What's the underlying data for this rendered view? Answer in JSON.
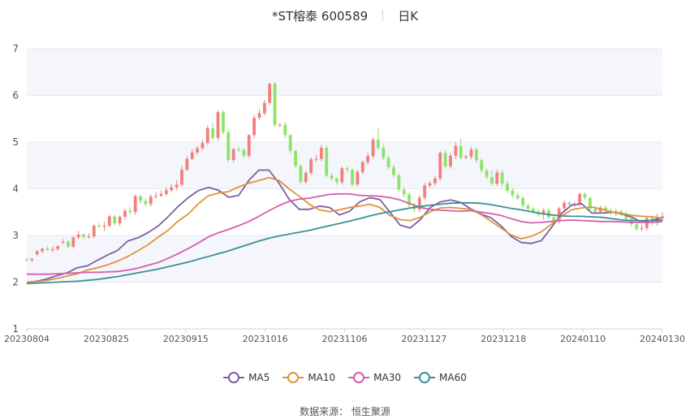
{
  "title": {
    "stock": "*ST榕泰 600589",
    "period": "日K"
  },
  "source": {
    "label": "数据来源：",
    "value": "恒生聚源"
  },
  "chart_data": {
    "type": "candlestick",
    "ylim": [
      1,
      7
    ],
    "yticks": [
      1,
      2,
      3,
      4,
      5,
      6,
      7
    ],
    "x_tick_labels": [
      "20230804",
      "20230825",
      "20230915",
      "20231016",
      "20231106",
      "20231127",
      "20231218",
      "20240110",
      "20240130"
    ],
    "colors": {
      "up": "#f08080",
      "down": "#8ee36a",
      "grid": "#e6e9f0",
      "band": "#f4f6fb"
    },
    "legend": [
      {
        "name": "MA5",
        "color": "#7b5ea7"
      },
      {
        "name": "MA10",
        "color": "#e0923a"
      },
      {
        "name": "MA30",
        "color": "#d35eb0"
      },
      {
        "name": "MA60",
        "color": "#3d8f95"
      }
    ],
    "candles": {
      "open": [
        2.48,
        2.47,
        2.6,
        2.66,
        2.72,
        2.69,
        2.71,
        2.85,
        2.87,
        2.76,
        2.96,
        3.02,
        2.97,
        2.98,
        3.21,
        3.19,
        3.21,
        3.41,
        3.26,
        3.4,
        3.53,
        3.5,
        3.84,
        3.74,
        3.67,
        3.83,
        3.85,
        3.89,
        3.97,
        4.03,
        4.09,
        4.41,
        4.64,
        4.78,
        4.87,
        4.98,
        5.3,
        5.09,
        5.64,
        5.21,
        4.62,
        4.85,
        4.84,
        4.71,
        5.15,
        5.52,
        5.62,
        5.84,
        6.25,
        5.37,
        5.37,
        5.15,
        4.81,
        4.49,
        4.15,
        4.34,
        4.63,
        4.64,
        4.88,
        4.28,
        4.22,
        4.14,
        4.44,
        4.41,
        4.09,
        4.36,
        4.57,
        4.7,
        5.05,
        4.88,
        4.66,
        4.46,
        4.29,
        3.98,
        3.88,
        3.65,
        3.56,
        3.81,
        4.07,
        4.12,
        4.22,
        4.77,
        4.48,
        4.71,
        4.92,
        4.67,
        4.69,
        4.84,
        4.61,
        4.39,
        4.25,
        4.11,
        4.35,
        4.11,
        3.96,
        3.86,
        3.8,
        3.64,
        3.57,
        3.51,
        3.45,
        3.54,
        3.39,
        3.31,
        3.58,
        3.7,
        3.66,
        3.68,
        3.89,
        3.81,
        3.57,
        3.51,
        3.6,
        3.54,
        3.49,
        3.52,
        3.47,
        3.36,
        3.24,
        3.14,
        3.16,
        3.37,
        3.27,
        3.37
      ],
      "high": [
        2.53,
        2.52,
        2.69,
        2.73,
        2.79,
        2.77,
        2.8,
        2.92,
        2.9,
        2.99,
        3.1,
        3.04,
        3.05,
        3.24,
        3.27,
        3.29,
        3.44,
        3.44,
        3.43,
        3.58,
        3.61,
        3.88,
        3.88,
        3.8,
        3.88,
        3.93,
        3.96,
        4.03,
        4.11,
        4.18,
        4.49,
        4.7,
        4.85,
        4.92,
        5.05,
        5.36,
        5.41,
        5.68,
        5.68,
        5.27,
        4.88,
        4.9,
        4.87,
        5.17,
        5.58,
        5.7,
        5.91,
        6.27,
        6.29,
        5.41,
        5.44,
        5.17,
        4.84,
        4.52,
        4.39,
        4.68,
        4.73,
        4.94,
        4.93,
        4.35,
        4.24,
        4.48,
        4.48,
        4.44,
        4.41,
        4.61,
        4.77,
        5.1,
        5.3,
        4.95,
        4.72,
        4.51,
        4.33,
        4.04,
        3.93,
        3.71,
        3.86,
        4.13,
        4.17,
        4.28,
        4.8,
        4.84,
        4.77,
        5.0,
        5.08,
        4.73,
        4.9,
        4.88,
        4.66,
        4.44,
        4.39,
        4.41,
        4.4,
        4.17,
        4.02,
        3.93,
        3.85,
        3.69,
        3.62,
        3.57,
        3.59,
        3.6,
        3.44,
        3.62,
        3.75,
        3.74,
        3.73,
        3.92,
        3.92,
        3.84,
        3.62,
        3.64,
        3.65,
        3.6,
        3.57,
        3.56,
        3.53,
        3.41,
        3.28,
        3.23,
        3.42,
        3.42,
        3.47,
        3.5
      ],
      "low": [
        2.44,
        2.43,
        2.56,
        2.62,
        2.68,
        2.64,
        2.67,
        2.81,
        2.72,
        2.72,
        2.92,
        2.92,
        2.93,
        2.94,
        3.17,
        3.1,
        3.17,
        3.22,
        3.2,
        3.34,
        3.44,
        3.44,
        3.68,
        3.62,
        3.62,
        3.79,
        3.82,
        3.84,
        3.93,
        3.98,
        4.05,
        4.38,
        4.61,
        4.73,
        4.82,
        4.94,
        5.04,
        5.03,
        5.16,
        4.56,
        4.57,
        4.79,
        4.66,
        4.66,
        5.08,
        5.48,
        5.57,
        5.79,
        5.32,
        5.32,
        5.09,
        4.76,
        4.45,
        4.1,
        4.1,
        4.29,
        4.58,
        4.59,
        4.24,
        4.18,
        4.08,
        4.09,
        4.35,
        4.04,
        4.05,
        4.31,
        4.51,
        4.64,
        4.82,
        4.61,
        4.41,
        4.24,
        3.93,
        3.82,
        3.59,
        3.5,
        3.5,
        3.76,
        4.02,
        4.07,
        4.18,
        4.42,
        4.43,
        4.63,
        4.62,
        4.63,
        4.63,
        4.55,
        4.34,
        4.2,
        4.06,
        4.06,
        4.05,
        3.91,
        3.81,
        3.75,
        3.59,
        3.52,
        3.45,
        3.39,
        3.34,
        3.35,
        3.25,
        3.26,
        3.52,
        3.61,
        3.61,
        3.63,
        3.76,
        3.52,
        3.46,
        3.47,
        3.49,
        3.44,
        3.42,
        3.42,
        3.31,
        3.19,
        3.1,
        3.09,
        3.1,
        3.2,
        3.21,
        3.31
      ],
      "close": [
        2.47,
        2.5,
        2.66,
        2.72,
        2.69,
        2.71,
        2.77,
        2.87,
        2.76,
        2.96,
        3.02,
        2.97,
        2.98,
        3.21,
        3.19,
        3.21,
        3.41,
        3.26,
        3.4,
        3.53,
        3.5,
        3.84,
        3.74,
        3.67,
        3.83,
        3.85,
        3.89,
        3.97,
        4.03,
        4.09,
        4.41,
        4.64,
        4.78,
        4.87,
        4.98,
        5.3,
        5.09,
        5.64,
        5.21,
        4.62,
        4.85,
        4.84,
        4.71,
        5.15,
        5.52,
        5.62,
        5.84,
        6.25,
        5.37,
        5.37,
        5.15,
        4.81,
        4.49,
        4.15,
        4.34,
        4.63,
        4.64,
        4.88,
        4.28,
        4.22,
        4.14,
        4.44,
        4.41,
        4.09,
        4.36,
        4.57,
        4.7,
        5.05,
        4.88,
        4.66,
        4.46,
        4.29,
        3.98,
        3.88,
        3.65,
        3.56,
        3.81,
        4.07,
        4.12,
        4.22,
        4.77,
        4.48,
        4.71,
        4.92,
        4.67,
        4.69,
        4.84,
        4.61,
        4.39,
        4.25,
        4.11,
        4.35,
        4.11,
        3.96,
        3.86,
        3.8,
        3.64,
        3.57,
        3.51,
        3.45,
        3.54,
        3.39,
        3.31,
        3.58,
        3.7,
        3.66,
        3.68,
        3.89,
        3.81,
        3.57,
        3.51,
        3.6,
        3.54,
        3.49,
        3.52,
        3.47,
        3.36,
        3.24,
        3.14,
        3.16,
        3.37,
        3.27,
        3.37,
        3.41
      ]
    },
    "series": [
      {
        "name": "MA5",
        "values": [
          2.0,
          2.02,
          2.07,
          2.14,
          2.2,
          2.31,
          2.35,
          2.47,
          2.58,
          2.68,
          2.88,
          2.95,
          3.06,
          3.2,
          3.4,
          3.62,
          3.81,
          3.96,
          4.03,
          3.97,
          3.82,
          3.86,
          4.18,
          4.4,
          4.4,
          4.12,
          3.78,
          3.56,
          3.56,
          3.63,
          3.6,
          3.44,
          3.52,
          3.72,
          3.81,
          3.77,
          3.5,
          3.22,
          3.16,
          3.34,
          3.6,
          3.72,
          3.76,
          3.71,
          3.57,
          3.46,
          3.38,
          3.21,
          2.98,
          2.85,
          2.83,
          2.89,
          3.17,
          3.47,
          3.65,
          3.68,
          3.48,
          3.48,
          3.5,
          3.46,
          3.39,
          3.28,
          3.33,
          3.38
        ]
      },
      {
        "name": "MA10",
        "values": [
          2.0,
          2.01,
          2.04,
          2.08,
          2.13,
          2.18,
          2.26,
          2.31,
          2.37,
          2.45,
          2.55,
          2.67,
          2.8,
          2.96,
          3.11,
          3.31,
          3.46,
          3.68,
          3.85,
          3.91,
          3.94,
          4.04,
          4.12,
          4.18,
          4.24,
          4.18,
          4.0,
          3.84,
          3.67,
          3.55,
          3.51,
          3.55,
          3.6,
          3.63,
          3.67,
          3.6,
          3.43,
          3.34,
          3.32,
          3.39,
          3.51,
          3.59,
          3.6,
          3.58,
          3.56,
          3.45,
          3.31,
          3.16,
          3.01,
          2.93,
          2.98,
          3.08,
          3.24,
          3.41,
          3.55,
          3.59,
          3.61,
          3.56,
          3.5,
          3.47,
          3.43,
          3.41,
          3.4,
          3.37
        ]
      },
      {
        "name": "MA30",
        "values": [
          2.17,
          2.17,
          2.17,
          2.18,
          2.19,
          2.2,
          2.21,
          2.21,
          2.22,
          2.23,
          2.26,
          2.3,
          2.36,
          2.42,
          2.51,
          2.61,
          2.72,
          2.84,
          2.97,
          3.06,
          3.13,
          3.21,
          3.3,
          3.41,
          3.53,
          3.64,
          3.73,
          3.78,
          3.8,
          3.84,
          3.88,
          3.89,
          3.89,
          3.86,
          3.85,
          3.84,
          3.81,
          3.76,
          3.68,
          3.6,
          3.56,
          3.54,
          3.53,
          3.52,
          3.53,
          3.5,
          3.47,
          3.43,
          3.36,
          3.3,
          3.27,
          3.28,
          3.3,
          3.32,
          3.33,
          3.32,
          3.31,
          3.3,
          3.3,
          3.29,
          3.28,
          3.28,
          3.28,
          3.3
        ]
      },
      {
        "name": "MA60",
        "values": [
          1.97,
          1.98,
          1.99,
          2.0,
          2.01,
          2.02,
          2.04,
          2.06,
          2.09,
          2.12,
          2.16,
          2.2,
          2.24,
          2.28,
          2.33,
          2.38,
          2.43,
          2.49,
          2.55,
          2.61,
          2.67,
          2.74,
          2.81,
          2.88,
          2.94,
          2.99,
          3.03,
          3.07,
          3.11,
          3.16,
          3.21,
          3.26,
          3.31,
          3.36,
          3.42,
          3.47,
          3.51,
          3.55,
          3.59,
          3.62,
          3.65,
          3.67,
          3.69,
          3.7,
          3.7,
          3.69,
          3.66,
          3.62,
          3.58,
          3.55,
          3.51,
          3.47,
          3.44,
          3.42,
          3.41,
          3.41,
          3.4,
          3.39,
          3.36,
          3.33,
          3.32,
          3.32,
          3.32,
          3.33
        ]
      }
    ]
  }
}
